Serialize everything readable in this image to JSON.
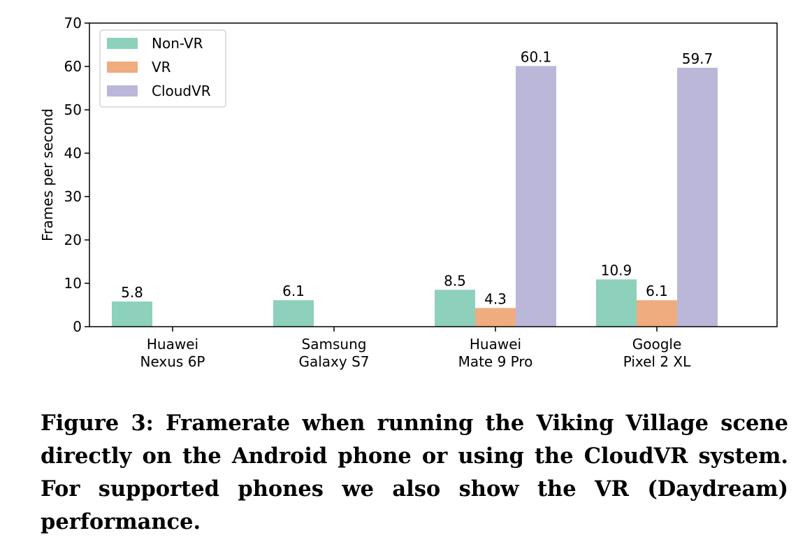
{
  "chart_data": {
    "type": "bar",
    "categories": [
      [
        "Huawei",
        "Nexus 6P"
      ],
      [
        "Samsung",
        "Galaxy S7"
      ],
      [
        "Huawei",
        "Mate 9 Pro"
      ],
      [
        "Google",
        "Pixel 2 XL"
      ]
    ],
    "series": [
      {
        "name": "Non-VR",
        "color": "#8dd0bb",
        "values": [
          5.8,
          6.1,
          8.5,
          10.9
        ],
        "labels": [
          "5.8",
          "6.1",
          "8.5",
          "10.9"
        ]
      },
      {
        "name": "VR",
        "color": "#eeac7f",
        "values": [
          null,
          null,
          4.3,
          6.1
        ],
        "labels": [
          "",
          "",
          "4.3",
          "6.1"
        ]
      },
      {
        "name": "CloudVR",
        "color": "#bbb7d9",
        "values": [
          null,
          null,
          60.1,
          59.7
        ],
        "labels": [
          "",
          "",
          "60.1",
          "59.7"
        ]
      }
    ],
    "ylabel": "Frames per second",
    "xlabel": "",
    "ylim": [
      0,
      70
    ],
    "yticks": [
      0,
      10,
      20,
      30,
      40,
      50,
      60,
      70
    ],
    "grid": false,
    "legend_position": "top-left"
  },
  "caption": "Figure 3: Framerate when running the Viking Village scene directly on the Android phone or using the CloudVR system. For supported phones we also show the VR (Daydream) performance."
}
